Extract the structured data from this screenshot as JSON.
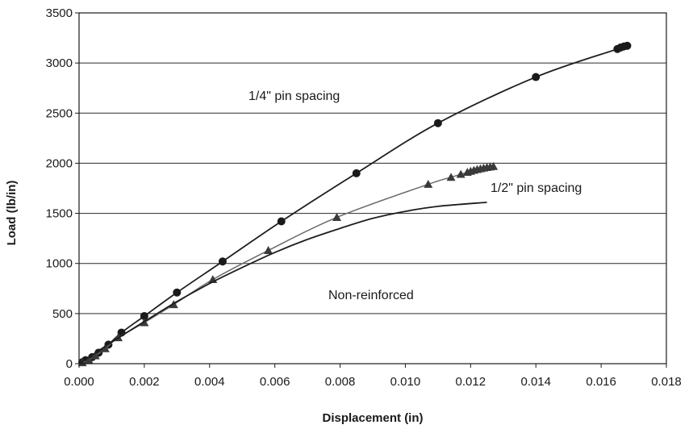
{
  "chart_data": {
    "type": "line",
    "xlabel": "Displacement (in)",
    "ylabel": "Load (lb/in)",
    "xlim": [
      0,
      0.018
    ],
    "ylim": [
      0,
      3500
    ],
    "x_ticks": [
      "0.000",
      "0.002",
      "0.004",
      "0.006",
      "0.008",
      "0.010",
      "0.012",
      "0.014",
      "0.016",
      "0.018"
    ],
    "y_ticks": [
      "0",
      "500",
      "1000",
      "1500",
      "2000",
      "2500",
      "3000",
      "3500"
    ],
    "grid": "horizontal",
    "legend": "none",
    "annotations": [
      {
        "text": "1/4\" pin spacing",
        "series": "quarter"
      },
      {
        "text": "1/2\" pin spacing",
        "series": "half"
      },
      {
        "text": "Non-reinforced",
        "series": "none"
      }
    ],
    "series": [
      {
        "id": "quarter",
        "marker": "circle",
        "x": [
          0.0001,
          0.0002,
          0.0004,
          0.0006,
          0.0009,
          0.0013,
          0.002,
          0.003,
          0.0044,
          0.0062,
          0.0085,
          0.011,
          0.014,
          0.0165,
          0.0166,
          0.0167,
          0.0168
        ],
        "y": [
          15,
          35,
          65,
          110,
          190,
          310,
          475,
          710,
          1020,
          1420,
          1900,
          2400,
          2860,
          3140,
          3155,
          3165,
          3172
        ]
      },
      {
        "id": "half",
        "marker": "triangle",
        "x": [
          0.0001,
          0.0003,
          0.0005,
          0.0008,
          0.0012,
          0.002,
          0.0029,
          0.0041,
          0.0058,
          0.0079,
          0.0107,
          0.0114,
          0.0117,
          0.0119,
          0.012,
          0.0121,
          0.0122,
          0.0123,
          0.0124,
          0.0125,
          0.0126,
          0.0127
        ],
        "y": [
          10,
          35,
          80,
          150,
          260,
          410,
          590,
          840,
          1130,
          1460,
          1790,
          1860,
          1890,
          1910,
          1920,
          1930,
          1938,
          1945,
          1952,
          1958,
          1963,
          1968
        ]
      },
      {
        "id": "none",
        "marker": "none",
        "x": [
          0,
          0.001,
          0.002,
          0.003,
          0.004,
          0.005,
          0.006,
          0.007,
          0.008,
          0.009,
          0.01,
          0.011,
          0.0125
        ],
        "y": [
          0,
          215,
          420,
          620,
          800,
          960,
          1110,
          1240,
          1350,
          1450,
          1520,
          1570,
          1610
        ]
      }
    ]
  }
}
